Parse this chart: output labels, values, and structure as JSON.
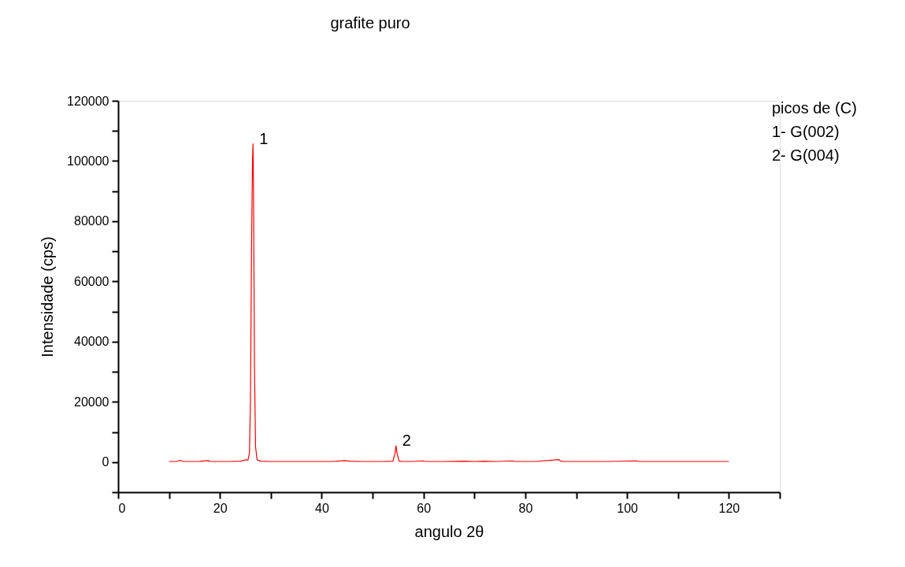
{
  "chart_data": {
    "type": "line",
    "title": "grafite puro",
    "xlabel": "angulo 2θ",
    "ylabel": "Intensidade (cps)",
    "xlim": [
      0,
      130
    ],
    "xticks": [
      0,
      {
        "value": 10,
        "label": null
      },
      20,
      {
        "value": 30,
        "label": null
      },
      40,
      {
        "value": 50,
        "label": null
      },
      60,
      {
        "value": 70,
        "label": null
      },
      80,
      {
        "value": 90,
        "label": null
      },
      100,
      {
        "value": 110,
        "label": null
      },
      120,
      {
        "value": 130,
        "label": null
      }
    ],
    "ylim": [
      -10000,
      120000
    ],
    "yticks": [
      {
        "value": -10000,
        "label": null
      },
      0,
      {
        "value": 10000,
        "label": null
      },
      20000,
      {
        "value": 30000,
        "label": null
      },
      40000,
      {
        "value": 50000,
        "label": null
      },
      60000,
      {
        "value": 70000,
        "label": null
      },
      80000,
      {
        "value": 90000,
        "label": null
      },
      100000,
      {
        "value": 110000,
        "label": null
      },
      120000
    ],
    "grid": false,
    "marker": "none",
    "line_style": "solid",
    "series": [
      {
        "color": "#ff0000",
        "x": [
          10,
          11.5,
          12.2,
          12.8,
          14,
          16,
          17.6,
          18.2,
          20,
          22,
          24,
          25.2,
          25.5,
          25.8,
          26.0,
          26.2,
          26.4,
          26.5,
          26.6,
          26.8,
          27.0,
          27.3,
          28,
          30,
          34,
          38,
          42,
          44.5,
          45.5,
          48,
          52,
          54.0,
          54.4,
          54.6,
          54.8,
          55.2,
          56,
          58,
          59.8,
          60.4,
          64,
          68,
          70,
          72,
          74,
          77.5,
          78,
          82,
          86.6,
          87,
          87.6,
          90,
          96,
          101.8,
          102.4,
          108,
          114,
          118,
          120
        ],
        "values": [
          200,
          200,
          600,
          200,
          200,
          200,
          500,
          200,
          200,
          200,
          300,
          800,
          600,
          3000,
          20000,
          70000,
          100000,
          105700,
          90000,
          30000,
          5000,
          800,
          300,
          200,
          200,
          200,
          200,
          500,
          300,
          200,
          200,
          300,
          3000,
          5400,
          3000,
          300,
          200,
          200,
          400,
          200,
          200,
          300,
          200,
          300,
          200,
          400,
          200,
          200,
          800,
          300,
          200,
          200,
          200,
          400,
          200,
          200,
          200,
          200,
          200
        ]
      }
    ],
    "annotations": [
      {
        "text": "1",
        "x": 26.5,
        "y": 105700
      },
      {
        "text": "2",
        "x": 54.6,
        "y": 5400
      },
      "picos de (C)",
      "1- G(002)",
      "2- G(004)"
    ]
  }
}
